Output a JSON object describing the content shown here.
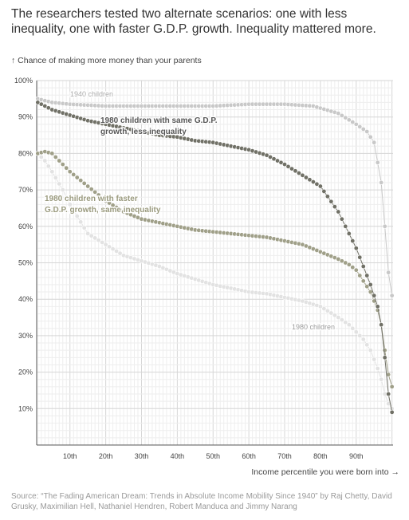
{
  "header": {
    "headline": "The researchers tested two alternate scenarios: one with less inequality, one with faster G.D.P. growth. Inequality mattered more."
  },
  "footer": {
    "source": "Source: “The Fading American Dream: Trends in Absolute Income Mobility Since 1940” by Raj Chetty, David Grusky, Maximilian Hell, Nathaniel Hendren, Robert Manduca and Jimmy Narang"
  },
  "chart_data": {
    "type": "scatter",
    "title": "",
    "ylabel": "↑ Chance of making more money than your parents",
    "xlabel": "Income percentile you were born into →",
    "xlim": [
      1,
      100
    ],
    "ylim": [
      0,
      100
    ],
    "grid": true,
    "y_ticks": [
      10,
      20,
      30,
      40,
      50,
      60,
      70,
      80,
      90,
      100
    ],
    "y_tick_labels": [
      "10%",
      "20%",
      "30%",
      "40%",
      "50%",
      "60%",
      "70%",
      "80%",
      "90%",
      "100%"
    ],
    "x_ticks": [
      10,
      20,
      30,
      40,
      50,
      60,
      70,
      80,
      90
    ],
    "x_tick_labels": [
      "10th",
      "20th",
      "30th",
      "40th",
      "50th",
      "60th",
      "70th",
      "80th",
      "90th"
    ],
    "series": [
      {
        "name": "1940 children",
        "color": "#c8c8c8",
        "anchors": [
          [
            1,
            95
          ],
          [
            5,
            94
          ],
          [
            10,
            93.5
          ],
          [
            20,
            93
          ],
          [
            30,
            93
          ],
          [
            40,
            93
          ],
          [
            50,
            93
          ],
          [
            60,
            93.5
          ],
          [
            70,
            93.5
          ],
          [
            78,
            93
          ],
          [
            85,
            91
          ],
          [
            90,
            88
          ],
          [
            93,
            86
          ],
          [
            95,
            83
          ],
          [
            97,
            72
          ],
          [
            98,
            60
          ],
          [
            99.5,
            41
          ]
        ],
        "points": 100
      },
      {
        "name": "1980 children with same G.D.P. growth, less inequality",
        "color": "#707066",
        "anchors": [
          [
            1,
            94
          ],
          [
            5,
            92
          ],
          [
            10,
            90.5
          ],
          [
            15,
            89
          ],
          [
            20,
            88
          ],
          [
            25,
            87
          ],
          [
            30,
            86
          ],
          [
            35,
            85
          ],
          [
            40,
            84.5
          ],
          [
            45,
            83.5
          ],
          [
            50,
            83
          ],
          [
            55,
            82
          ],
          [
            60,
            81
          ],
          [
            65,
            79.5
          ],
          [
            70,
            77
          ],
          [
            75,
            74
          ],
          [
            80,
            71
          ],
          [
            85,
            64
          ],
          [
            88,
            58
          ],
          [
            90,
            54
          ],
          [
            92,
            49
          ],
          [
            94,
            44
          ],
          [
            96,
            38
          ],
          [
            97,
            33
          ],
          [
            98,
            24
          ],
          [
            99.5,
            9
          ]
        ],
        "points": 100
      },
      {
        "name": "1980 children with faster G.D.P. growth, same inequality",
        "color": "#9f9f88",
        "anchors": [
          [
            1,
            80
          ],
          [
            3,
            80.5
          ],
          [
            5,
            80
          ],
          [
            8,
            77
          ],
          [
            10,
            75
          ],
          [
            15,
            71
          ],
          [
            20,
            67
          ],
          [
            25,
            64
          ],
          [
            30,
            62
          ],
          [
            35,
            61
          ],
          [
            40,
            60
          ],
          [
            45,
            59
          ],
          [
            50,
            58.5
          ],
          [
            55,
            58
          ],
          [
            60,
            57.5
          ],
          [
            65,
            57
          ],
          [
            70,
            56
          ],
          [
            75,
            55
          ],
          [
            80,
            53
          ],
          [
            85,
            51
          ],
          [
            88,
            49.5
          ],
          [
            90,
            48
          ],
          [
            92,
            45
          ],
          [
            94,
            42
          ],
          [
            96,
            37
          ],
          [
            97,
            33
          ],
          [
            98,
            26
          ],
          [
            99.5,
            16
          ]
        ],
        "points": 100
      },
      {
        "name": "1980 children",
        "color": "#e2e2e2",
        "anchors": [
          [
            1,
            80
          ],
          [
            3,
            78
          ],
          [
            5,
            75
          ],
          [
            8,
            70
          ],
          [
            10,
            66
          ],
          [
            15,
            58
          ],
          [
            20,
            55
          ],
          [
            25,
            52
          ],
          [
            30,
            50.5
          ],
          [
            35,
            49
          ],
          [
            40,
            47
          ],
          [
            45,
            45.5
          ],
          [
            50,
            44
          ],
          [
            55,
            43
          ],
          [
            60,
            42
          ],
          [
            65,
            41.5
          ],
          [
            70,
            40.5
          ],
          [
            75,
            39.5
          ],
          [
            80,
            38
          ],
          [
            85,
            35
          ],
          [
            88,
            33
          ],
          [
            90,
            31
          ],
          [
            92,
            29
          ],
          [
            94,
            26
          ],
          [
            96,
            21
          ],
          [
            97,
            18
          ],
          [
            98,
            14
          ],
          [
            99.5,
            10
          ]
        ],
        "points": 100
      }
    ],
    "annotations": [
      {
        "text": "1940 children",
        "color": "#aaaaaa"
      },
      {
        "text": "1980 children with same G.D.P.",
        "color": "#555555"
      },
      {
        "text": "growth, less inequality",
        "color": "#555555"
      },
      {
        "text": "1980 children with faster",
        "color": "#9a9a7e"
      },
      {
        "text": "G.D.P. growth, same inequality",
        "color": "#9a9a7e"
      },
      {
        "text": "1980 children",
        "color": "#9a9a9a"
      }
    ]
  }
}
